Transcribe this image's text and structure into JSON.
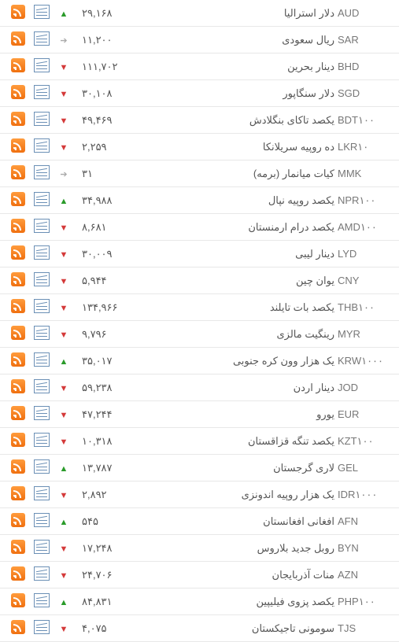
{
  "colors": {
    "up": "#2a9b2a",
    "down": "#d43a3a",
    "same": "#aaaaaa",
    "border": "#e8e8e8",
    "text": "#555555",
    "code_text": "#777777",
    "rss_gradient_top": "#ff9b3c",
    "rss_gradient_bottom": "#f07010",
    "chart_border": "#6a8fb5",
    "background": "#ffffff"
  },
  "arrow_glyphs": {
    "up": "▲",
    "down": "▼",
    "same": "➔"
  },
  "rows": [
    {
      "code": "AUD",
      "name": "دلار استرالیا",
      "price": "۲۹,۱۶۸",
      "trend": "up"
    },
    {
      "code": "SAR",
      "name": "ریال سعودی",
      "price": "۱۱,۲۰۰",
      "trend": "same"
    },
    {
      "code": "BHD",
      "name": "دینار بحرین",
      "price": "۱۱۱,۷۰۲",
      "trend": "down"
    },
    {
      "code": "SGD",
      "name": "دلار سنگاپور",
      "price": "۳۰,۱۰۸",
      "trend": "down"
    },
    {
      "code": "BDT۱۰۰",
      "name": "یکصد تاکای بنگلادش",
      "price": "۴۹,۴۶۹",
      "trend": "down"
    },
    {
      "code": "LKR۱۰",
      "name": "ده روپیه سریلانکا",
      "price": "۲,۲۵۹",
      "trend": "down"
    },
    {
      "code": "MMK",
      "name": "کیات میانمار (برمه)",
      "price": "۳۱",
      "trend": "same"
    },
    {
      "code": "NPR۱۰۰",
      "name": "یکصد روپیه نپال",
      "price": "۳۴,۹۸۸",
      "trend": "up"
    },
    {
      "code": "AMD۱۰۰",
      "name": "یکصد درام ارمنستان",
      "price": "۸,۶۸۱",
      "trend": "down"
    },
    {
      "code": "LYD",
      "name": "دینار لیبی",
      "price": "۳۰,۰۰۹",
      "trend": "down"
    },
    {
      "code": "CNY",
      "name": "یوان چین",
      "price": "۵,۹۴۴",
      "trend": "down"
    },
    {
      "code": "THB۱۰۰",
      "name": "یکصد بات تایلند",
      "price": "۱۳۴,۹۶۶",
      "trend": "down"
    },
    {
      "code": "MYR",
      "name": "رینگیت مالزی",
      "price": "۹,۷۹۶",
      "trend": "down"
    },
    {
      "code": "KRW۱۰۰۰",
      "name": "یک هزار وون کره جنوبی",
      "price": "۳۵,۰۱۷",
      "trend": "up"
    },
    {
      "code": "JOD",
      "name": "دینار اردن",
      "price": "۵۹,۲۳۸",
      "trend": "down"
    },
    {
      "code": "EUR",
      "name": "یورو",
      "price": "۴۷,۲۴۴",
      "trend": "down"
    },
    {
      "code": "KZT۱۰۰",
      "name": "یکصد تنگه قزاقستان",
      "price": "۱۰,۳۱۸",
      "trend": "down"
    },
    {
      "code": "GEL",
      "name": "لاری گرجستان",
      "price": "۱۳,۷۸۷",
      "trend": "up"
    },
    {
      "code": "IDR۱۰۰۰",
      "name": "یک هزار روپیه اندونزی",
      "price": "۲,۸۹۲",
      "trend": "down"
    },
    {
      "code": "AFN",
      "name": "افغانی افغانستان",
      "price": "۵۴۵",
      "trend": "up"
    },
    {
      "code": "BYN",
      "name": "روبل جدید بلاروس",
      "price": "۱۷,۲۴۸",
      "trend": "down"
    },
    {
      "code": "AZN",
      "name": "منات آذربایجان",
      "price": "۲۴,۷۰۶",
      "trend": "down"
    },
    {
      "code": "PHP۱۰۰",
      "name": "یکصد پزوی فیلیپین",
      "price": "۸۴,۸۳۱",
      "trend": "up"
    },
    {
      "code": "TJS",
      "name": "سومونی تاجیکستان",
      "price": "۴,۰۷۵",
      "trend": "down"
    }
  ]
}
